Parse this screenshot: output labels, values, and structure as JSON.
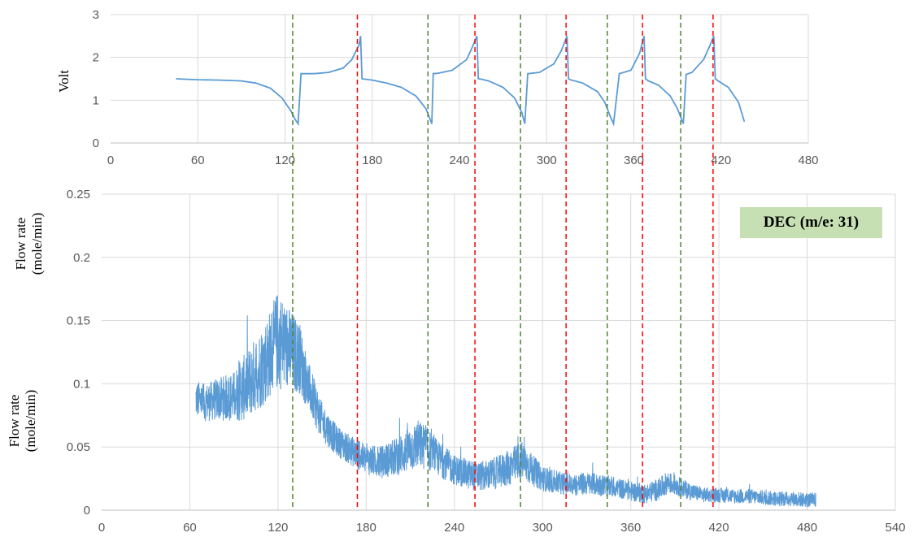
{
  "chart_data": [
    {
      "type": "line",
      "title": "",
      "xlabel": "",
      "ylabel": "Volt",
      "xlim": [
        0,
        480
      ],
      "ylim": [
        0,
        3
      ],
      "x_ticks": [
        "0",
        "60",
        "120",
        "180",
        "240",
        "300",
        "360",
        "420",
        "480"
      ],
      "y_ticks": [
        "0",
        "1",
        "2",
        "3"
      ],
      "grid": true,
      "color": "#5b9bd5",
      "series": [
        {
          "x": [
            45,
            60,
            75,
            90,
            100,
            110,
            118,
            124,
            127,
            129,
            131,
            140,
            150,
            160,
            166,
            171,
            172,
            173,
            180,
            190,
            200,
            210,
            217,
            221,
            222,
            225,
            235,
            245,
            249,
            252,
            253,
            254,
            260,
            270,
            278,
            283,
            285,
            287,
            295,
            305,
            310,
            314,
            315,
            316,
            325,
            335,
            340,
            344,
            346,
            350,
            358,
            364,
            367,
            368,
            370,
            377,
            385,
            390,
            394,
            396,
            400,
            408,
            412,
            415,
            416,
            418,
            425,
            432,
            436
          ],
          "y": [
            1.5,
            1.48,
            1.47,
            1.45,
            1.4,
            1.28,
            1.05,
            0.75,
            0.55,
            0.45,
            1.62,
            1.62,
            1.65,
            1.75,
            1.95,
            2.3,
            2.5,
            1.5,
            1.47,
            1.4,
            1.3,
            1.1,
            0.8,
            0.45,
            1.62,
            1.63,
            1.7,
            1.95,
            2.25,
            2.5,
            1.5,
            1.5,
            1.45,
            1.3,
            1.05,
            0.7,
            0.45,
            1.62,
            1.65,
            1.85,
            2.15,
            2.5,
            1.5,
            1.48,
            1.4,
            1.2,
            0.95,
            0.6,
            0.45,
            1.62,
            1.7,
            2.1,
            2.5,
            1.5,
            1.45,
            1.35,
            1.1,
            0.8,
            0.45,
            1.6,
            1.65,
            1.95,
            2.25,
            2.5,
            1.5,
            1.45,
            1.3,
            0.95,
            0.5
          ]
        }
      ]
    },
    {
      "type": "line",
      "title": "",
      "xlabel": "",
      "ylabel": "Flow rate (mole/min)",
      "xlim": [
        0,
        540
      ],
      "ylim": [
        0,
        0.25
      ],
      "x_ticks": [
        "0",
        "60",
        "120",
        "180",
        "240",
        "300",
        "360",
        "420",
        "480",
        "540"
      ],
      "y_ticks": [
        "0",
        "0.05",
        "0.1",
        "0.15",
        "0.2",
        "0.25"
      ],
      "grid": true,
      "color": "#5b9bd5",
      "annotation": "DEC (m/e: 31)",
      "series": [
        {
          "x": [
            64,
            70,
            80,
            90,
            95,
            100,
            105,
            110,
            115,
            120,
            125,
            130,
            135,
            140,
            145,
            150,
            160,
            170,
            180,
            190,
            200,
            210,
            215,
            220,
            225,
            230,
            240,
            250,
            260,
            270,
            280,
            285,
            290,
            300,
            310,
            320,
            330,
            340,
            350,
            360,
            370,
            380,
            385,
            390,
            400,
            410,
            420,
            430,
            440,
            450,
            460,
            470,
            480,
            486
          ],
          "y": [
            0.088,
            0.085,
            0.088,
            0.09,
            0.095,
            0.1,
            0.108,
            0.115,
            0.125,
            0.135,
            0.13,
            0.125,
            0.12,
            0.1,
            0.085,
            0.07,
            0.055,
            0.047,
            0.04,
            0.038,
            0.042,
            0.048,
            0.052,
            0.05,
            0.045,
            0.04,
            0.032,
            0.028,
            0.027,
            0.03,
            0.035,
            0.04,
            0.035,
            0.025,
            0.022,
            0.02,
            0.021,
            0.02,
            0.018,
            0.015,
            0.013,
            0.017,
            0.022,
            0.02,
            0.015,
            0.012,
            0.012,
            0.011,
            0.011,
            0.01,
            0.009,
            0.009,
            0.008,
            0.008
          ],
          "noise_amplitude": [
            0.015,
            0.015,
            0.017,
            0.02,
            0.025,
            0.028,
            0.03,
            0.033,
            0.035,
            0.04,
            0.035,
            0.032,
            0.028,
            0.02,
            0.018,
            0.015,
            0.012,
            0.012,
            0.012,
            0.013,
            0.015,
            0.018,
            0.02,
            0.018,
            0.015,
            0.014,
            0.012,
            0.012,
            0.012,
            0.013,
            0.015,
            0.016,
            0.014,
            0.01,
            0.009,
            0.009,
            0.009,
            0.009,
            0.008,
            0.008,
            0.008,
            0.009,
            0.009,
            0.008,
            0.007,
            0.006,
            0.006,
            0.006,
            0.006,
            0.006,
            0.006,
            0.006,
            0.006,
            0.006
          ]
        }
      ]
    }
  ],
  "markers": {
    "green_x": [
      130,
      222,
      285,
      344,
      394
    ],
    "red_x": [
      174,
      254,
      316,
      368,
      416
    ],
    "green_color": "#548235",
    "red_color": "#ff0000"
  },
  "top_ylabel": "Volt",
  "bottom_ylabel_upper": [
    "Flow rate",
    "(mole/min)"
  ],
  "bottom_ylabel_lower": [
    "Flow rate",
    "(mole/min)"
  ],
  "annotation": "DEC (m/e: 31)"
}
